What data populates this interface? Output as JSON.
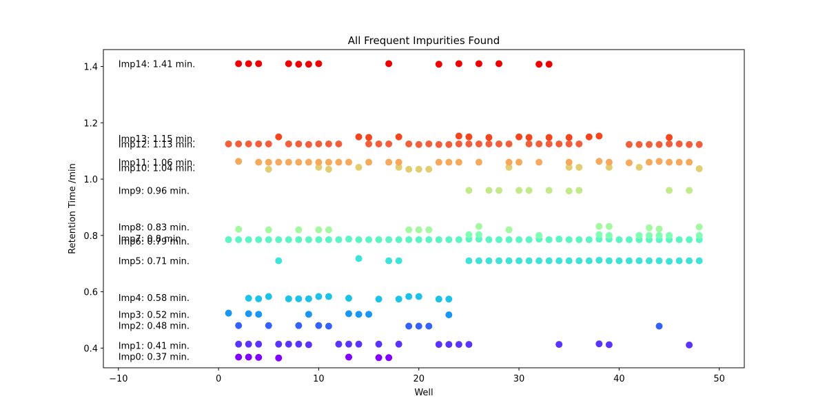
{
  "chart_data": {
    "type": "scatter",
    "title": "All Frequent Impurities Found",
    "xlabel": "Well",
    "ylabel": "Retention Time /min",
    "xlim": [
      -11.5,
      52.5
    ],
    "ylim": [
      0.33,
      1.46
    ],
    "x_ticks": [
      -10,
      0,
      10,
      20,
      30,
      40,
      50
    ],
    "y_ticks": [
      0.4,
      0.6,
      0.8,
      1.0,
      1.2,
      1.4
    ],
    "x_tick_labels": [
      "−10",
      "0",
      "10",
      "20",
      "30",
      "40",
      "50"
    ],
    "y_tick_labels": [
      "0.4",
      "0.6",
      "0.8",
      "1.0",
      "1.2",
      "1.4"
    ],
    "grid": false,
    "legend": "none",
    "series": [
      {
        "label": "Imp0: 0.37 min.",
        "label_y": 0.37,
        "color": "#8000ff",
        "points": [
          [
            2,
            0.368
          ],
          [
            3,
            0.368
          ],
          [
            4,
            0.367
          ],
          [
            6,
            0.365
          ],
          [
            13,
            0.368
          ],
          [
            16,
            0.366
          ],
          [
            17,
            0.366
          ]
        ]
      },
      {
        "label": "Imp1: 0.41 min.",
        "label_y": 0.41,
        "color": "#5b33fe",
        "points": [
          [
            2,
            0.414
          ],
          [
            3,
            0.414
          ],
          [
            4,
            0.414
          ],
          [
            6,
            0.414
          ],
          [
            7,
            0.414
          ],
          [
            8,
            0.414
          ],
          [
            9,
            0.412
          ],
          [
            12,
            0.414
          ],
          [
            13,
            0.414
          ],
          [
            14,
            0.414
          ],
          [
            16,
            0.414
          ],
          [
            18,
            0.414
          ],
          [
            22,
            0.413
          ],
          [
            23,
            0.413
          ],
          [
            24,
            0.413
          ],
          [
            25,
            0.413
          ],
          [
            34,
            0.413
          ],
          [
            38,
            0.415
          ],
          [
            39,
            0.412
          ],
          [
            47,
            0.411
          ]
        ]
      },
      {
        "label": "Imp2: 0.48 min.",
        "label_y": 0.48,
        "color": "#3461fb",
        "points": [
          [
            2,
            0.48
          ],
          [
            5,
            0.48
          ],
          [
            8,
            0.48
          ],
          [
            10,
            0.48
          ],
          [
            11,
            0.478
          ],
          [
            19,
            0.478
          ],
          [
            20,
            0.478
          ],
          [
            21,
            0.478
          ],
          [
            44,
            0.478
          ]
        ]
      },
      {
        "label": "Imp3: 0.52 min.",
        "label_y": 0.52,
        "color": "#1996f3",
        "points": [
          [
            1,
            0.524
          ],
          [
            3,
            0.522
          ],
          [
            4,
            0.52
          ],
          [
            9,
            0.52
          ],
          [
            13,
            0.522
          ],
          [
            14,
            0.52
          ],
          [
            15,
            0.52
          ],
          [
            23,
            0.518
          ]
        ]
      },
      {
        "label": "Imp4: 0.58 min.",
        "label_y": 0.58,
        "color": "#1cc2e7",
        "points": [
          [
            3,
            0.577
          ],
          [
            4,
            0.575
          ],
          [
            5,
            0.583
          ],
          [
            7,
            0.575
          ],
          [
            8,
            0.575
          ],
          [
            9,
            0.575
          ],
          [
            10,
            0.583
          ],
          [
            11,
            0.583
          ],
          [
            13,
            0.577
          ],
          [
            16,
            0.574
          ],
          [
            18,
            0.574
          ],
          [
            19,
            0.583
          ],
          [
            20,
            0.583
          ],
          [
            22,
            0.574
          ],
          [
            23,
            0.574
          ]
        ]
      },
      {
        "label": "Imp5: 0.71 min.",
        "label_y": 0.71,
        "color": "#3de3d8",
        "points": [
          [
            6,
            0.71
          ],
          [
            14,
            0.718
          ],
          [
            17,
            0.71
          ],
          [
            18,
            0.71
          ],
          [
            25,
            0.71
          ],
          [
            26,
            0.71
          ],
          [
            27,
            0.71
          ],
          [
            28,
            0.71
          ],
          [
            29,
            0.71
          ],
          [
            30,
            0.71
          ],
          [
            31,
            0.71
          ],
          [
            32,
            0.71
          ],
          [
            33,
            0.71
          ],
          [
            34,
            0.71
          ],
          [
            35,
            0.71
          ],
          [
            36,
            0.71
          ],
          [
            37,
            0.71
          ],
          [
            38,
            0.712
          ],
          [
            39,
            0.71
          ],
          [
            40,
            0.71
          ],
          [
            41,
            0.71
          ],
          [
            42,
            0.71
          ],
          [
            43,
            0.71
          ],
          [
            44,
            0.71
          ],
          [
            45,
            0.708
          ],
          [
            46,
            0.71
          ],
          [
            47,
            0.71
          ],
          [
            48,
            0.71
          ]
        ]
      },
      {
        "label": "Imp6: 0.79 min.",
        "label_y": 0.78,
        "color": "#5cf5c4",
        "points": [
          [
            1,
            0.785
          ],
          [
            2,
            0.785
          ],
          [
            3,
            0.785
          ],
          [
            4,
            0.785
          ],
          [
            5,
            0.785
          ],
          [
            6,
            0.785
          ],
          [
            7,
            0.785
          ],
          [
            8,
            0.785
          ],
          [
            9,
            0.785
          ],
          [
            10,
            0.785
          ],
          [
            11,
            0.785
          ],
          [
            12,
            0.785
          ],
          [
            13,
            0.787
          ],
          [
            14,
            0.785
          ],
          [
            15,
            0.785
          ],
          [
            16,
            0.785
          ],
          [
            17,
            0.785
          ],
          [
            18,
            0.785
          ],
          [
            19,
            0.785
          ],
          [
            20,
            0.785
          ],
          [
            21,
            0.785
          ],
          [
            22,
            0.785
          ],
          [
            23,
            0.785
          ],
          [
            24,
            0.785
          ],
          [
            25,
            0.787
          ],
          [
            26,
            0.787
          ],
          [
            27,
            0.785
          ],
          [
            28,
            0.785
          ],
          [
            29,
            0.785
          ],
          [
            30,
            0.785
          ],
          [
            31,
            0.785
          ],
          [
            32,
            0.787
          ],
          [
            33,
            0.785
          ],
          [
            34,
            0.787
          ],
          [
            35,
            0.785
          ],
          [
            36,
            0.785
          ],
          [
            37,
            0.785
          ],
          [
            38,
            0.787
          ],
          [
            39,
            0.787
          ],
          [
            40,
            0.785
          ],
          [
            41,
            0.785
          ],
          [
            42,
            0.785
          ],
          [
            43,
            0.785
          ],
          [
            44,
            0.785
          ],
          [
            45,
            0.785
          ],
          [
            46,
            0.785
          ],
          [
            47,
            0.785
          ],
          [
            48,
            0.785
          ]
        ]
      },
      {
        "label": "Imp7: 0.8 min.",
        "label_y": 0.79,
        "color": "#80ffb4",
        "points": [
          [
            25,
            0.803
          ],
          [
            26,
            0.803
          ],
          [
            32,
            0.8
          ],
          [
            38,
            0.803
          ],
          [
            39,
            0.8
          ],
          [
            42,
            0.8
          ],
          [
            43,
            0.8
          ],
          [
            44,
            0.8
          ],
          [
            45,
            0.8
          ],
          [
            48,
            0.8
          ]
        ]
      },
      {
        "label": "Imp8: 0.83 min.",
        "label_y": 0.83,
        "color": "#a4f89f",
        "points": [
          [
            2,
            0.822
          ],
          [
            5,
            0.82
          ],
          [
            8,
            0.82
          ],
          [
            10,
            0.82
          ],
          [
            11,
            0.82
          ],
          [
            19,
            0.82
          ],
          [
            20,
            0.82
          ],
          [
            21,
            0.82
          ],
          [
            26,
            0.832
          ],
          [
            29,
            0.82
          ],
          [
            38,
            0.832
          ],
          [
            39,
            0.832
          ],
          [
            43,
            0.827
          ],
          [
            44,
            0.823
          ],
          [
            48,
            0.83
          ]
        ]
      },
      {
        "label": "Imp9: 0.96 min.",
        "label_y": 0.96,
        "color": "#c4e98a",
        "points": [
          [
            25,
            0.96
          ],
          [
            27,
            0.96
          ],
          [
            28,
            0.96
          ],
          [
            30,
            0.96
          ],
          [
            31,
            0.96
          ],
          [
            33,
            0.96
          ],
          [
            35,
            0.958
          ],
          [
            36,
            0.96
          ],
          [
            45,
            0.96
          ],
          [
            47,
            0.96
          ]
        ]
      },
      {
        "label": "Imp10: 1.04 min.",
        "label_y": 1.04,
        "color": "#e3cd71",
        "points": [
          [
            5,
            1.035
          ],
          [
            10,
            1.042
          ],
          [
            11,
            1.035
          ],
          [
            14,
            1.042
          ],
          [
            18,
            1.042
          ],
          [
            19,
            1.035
          ],
          [
            20,
            1.035
          ],
          [
            21,
            1.035
          ],
          [
            29,
            1.042
          ],
          [
            35,
            1.042
          ],
          [
            36,
            1.042
          ],
          [
            39,
            1.042
          ],
          [
            42,
            1.042
          ],
          [
            48,
            1.037
          ]
        ]
      },
      {
        "label": "Imp11: 1.06 min.",
        "label_y": 1.06,
        "color": "#f6a95d",
        "points": [
          [
            2,
            1.063
          ],
          [
            4,
            1.06
          ],
          [
            5,
            1.06
          ],
          [
            6,
            1.06
          ],
          [
            7,
            1.06
          ],
          [
            8,
            1.06
          ],
          [
            9,
            1.06
          ],
          [
            10,
            1.06
          ],
          [
            11,
            1.06
          ],
          [
            12,
            1.06
          ],
          [
            13,
            1.06
          ],
          [
            15,
            1.06
          ],
          [
            17,
            1.06
          ],
          [
            18,
            1.06
          ],
          [
            22,
            1.06
          ],
          [
            23,
            1.06
          ],
          [
            24,
            1.06
          ],
          [
            26,
            1.06
          ],
          [
            29,
            1.06
          ],
          [
            30,
            1.06
          ],
          [
            32,
            1.06
          ],
          [
            35,
            1.06
          ],
          [
            38,
            1.063
          ],
          [
            39,
            1.06
          ],
          [
            41,
            1.058
          ],
          [
            43,
            1.06
          ],
          [
            44,
            1.063
          ],
          [
            45,
            1.06
          ],
          [
            46,
            1.06
          ],
          [
            47,
            1.06
          ]
        ]
      },
      {
        "label": "Imp12: 1.13 min.",
        "label_y": 1.125,
        "color": "#f1603c",
        "points": [
          [
            1,
            1.125
          ],
          [
            2,
            1.125
          ],
          [
            3,
            1.125
          ],
          [
            4,
            1.125
          ],
          [
            5,
            1.125
          ],
          [
            7,
            1.125
          ],
          [
            8,
            1.125
          ],
          [
            9,
            1.123
          ],
          [
            10,
            1.125
          ],
          [
            11,
            1.125
          ],
          [
            12,
            1.125
          ],
          [
            15,
            1.125
          ],
          [
            16,
            1.125
          ],
          [
            17,
            1.125
          ],
          [
            19,
            1.125
          ],
          [
            20,
            1.123
          ],
          [
            21,
            1.125
          ],
          [
            22,
            1.123
          ],
          [
            23,
            1.123
          ],
          [
            24,
            1.125
          ],
          [
            25,
            1.125
          ],
          [
            26,
            1.125
          ],
          [
            27,
            1.125
          ],
          [
            28,
            1.125
          ],
          [
            29,
            1.125
          ],
          [
            31,
            1.125
          ],
          [
            32,
            1.125
          ],
          [
            33,
            1.125
          ],
          [
            34,
            1.125
          ],
          [
            35,
            1.125
          ],
          [
            36,
            1.125
          ],
          [
            41,
            1.123
          ],
          [
            42,
            1.123
          ],
          [
            43,
            1.123
          ],
          [
            44,
            1.123
          ],
          [
            45,
            1.125
          ],
          [
            46,
            1.125
          ],
          [
            47,
            1.123
          ],
          [
            48,
            1.123
          ]
        ]
      },
      {
        "label": "Imp13: 1.15 min.",
        "label_y": 1.145,
        "color": "#f3461e",
        "points": [
          [
            6,
            1.15
          ],
          [
            14,
            1.15
          ],
          [
            15,
            1.148
          ],
          [
            18,
            1.15
          ],
          [
            24,
            1.153
          ],
          [
            25,
            1.15
          ],
          [
            27,
            1.148
          ],
          [
            30,
            1.15
          ],
          [
            31,
            1.148
          ],
          [
            33,
            1.148
          ],
          [
            35,
            1.148
          ],
          [
            37,
            1.15
          ],
          [
            38,
            1.153
          ],
          [
            45,
            1.148
          ]
        ]
      },
      {
        "label": "Imp14: 1.41 min.",
        "label_y": 1.41,
        "color": "#ed0000",
        "points": [
          [
            2,
            1.41
          ],
          [
            3,
            1.41
          ],
          [
            4,
            1.41
          ],
          [
            7,
            1.41
          ],
          [
            8,
            1.408
          ],
          [
            9,
            1.408
          ],
          [
            10,
            1.41
          ],
          [
            17,
            1.41
          ],
          [
            22,
            1.408
          ],
          [
            24,
            1.41
          ],
          [
            26,
            1.41
          ],
          [
            28,
            1.41
          ],
          [
            32,
            1.408
          ],
          [
            33,
            1.408
          ]
        ]
      }
    ]
  }
}
